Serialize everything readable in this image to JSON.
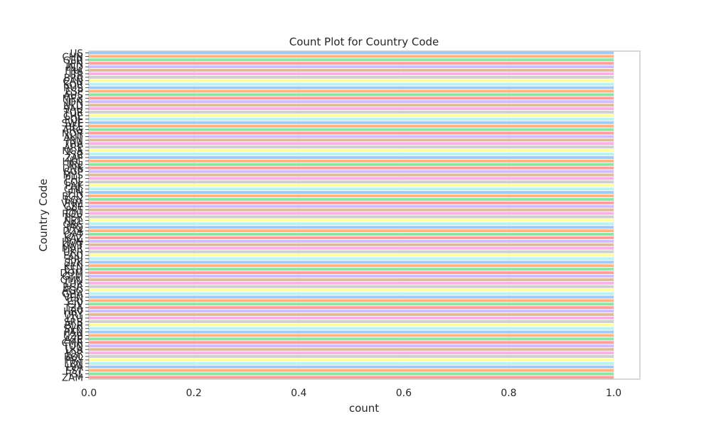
{
  "chart_data": {
    "type": "bar",
    "orientation": "horizontal",
    "title": "Count Plot for Country Code",
    "xlabel": "count",
    "ylabel": "Country Code",
    "xlim": [
      0,
      1.05
    ],
    "xticks": [
      "0.0",
      "0.2",
      "0.4",
      "0.6",
      "0.8",
      "1.0"
    ],
    "grid": true,
    "palette": [
      "#a1c9f4",
      "#ffb482",
      "#8de5a1",
      "#ff9f9b",
      "#d0bbff",
      "#debb9b",
      "#fab0e4",
      "#cfcfcf",
      "#fffea3",
      "#b9f2f0"
    ],
    "categories": [
      "US",
      "CHN",
      "GER",
      "JPN",
      "IND",
      "FRA",
      "ITA",
      "BRA",
      "CAN",
      "KOR",
      "RUS",
      "ESP",
      "AUS",
      "MEX",
      "IDN",
      "NLD",
      "SAU",
      "TUR",
      "CHE",
      "POL",
      "SWE",
      "BEL",
      "ARG",
      "NOR",
      "AUT",
      "IRN",
      "THA",
      "ARE",
      "NGA",
      "ISR",
      "ZAF",
      "HKG",
      "IRL",
      "DNK",
      "SGP",
      "MYS",
      "PHL",
      "COL",
      "PAK",
      "CHL",
      "FIN",
      "BGD",
      "EGY",
      "VNM",
      "CZE",
      "PRT",
      "ROU",
      "PER",
      "NZL",
      "GRC",
      "IRQ",
      "DZA",
      "QAT",
      "KAZ",
      "HUN",
      "KWT",
      "MAR",
      "UKR",
      "ECU",
      "PRI",
      "SVK",
      "KEN",
      "ETH",
      "DOM",
      "GTM",
      "OMN",
      "LUX",
      "BGR",
      "AGO",
      "GHA",
      "VEN",
      "CRI",
      "CIV",
      "TZA",
      "HRV",
      "URY",
      "LTU",
      "SRB",
      "BLR",
      "SVN",
      "PAN",
      "UZB",
      "AZE",
      "CMR",
      "TUN",
      "LKA",
      "JOR",
      "BOL",
      "PRY",
      "LBN",
      "LVA",
      "EST",
      "ISL",
      "ZAM"
    ],
    "values": [
      1,
      1,
      1,
      1,
      1,
      1,
      1,
      1,
      1,
      1,
      1,
      1,
      1,
      1,
      1,
      1,
      1,
      1,
      1,
      1,
      1,
      1,
      1,
      1,
      1,
      1,
      1,
      1,
      1,
      1,
      1,
      1,
      1,
      1,
      1,
      1,
      1,
      1,
      1,
      1,
      1,
      1,
      1,
      1,
      1,
      1,
      1,
      1,
      1,
      1,
      1,
      1,
      1,
      1,
      1,
      1,
      1,
      1,
      1,
      1,
      1,
      1,
      1,
      1,
      1,
      1,
      1,
      1,
      1,
      1,
      1,
      1,
      1,
      1,
      1,
      1,
      1,
      1,
      1,
      1,
      1,
      1,
      1,
      1,
      1,
      1,
      1,
      1,
      1,
      1,
      1,
      1,
      1,
      1
    ]
  }
}
